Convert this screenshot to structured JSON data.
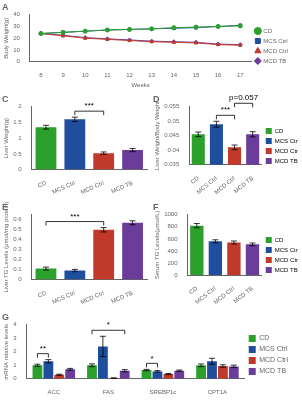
{
  "chart_data": [
    {
      "type": "line",
      "title": "A",
      "xlabel": "Weeks",
      "ylabel": "Body Weight(g)",
      "x": [
        8,
        9,
        10,
        11,
        12,
        13,
        14,
        15,
        16,
        17
      ],
      "series": [
        {
          "name": "CD",
          "color": "#2ca02c",
          "marker": "circle",
          "values": [
            24.0,
            25.0,
            26.0,
            27.0,
            27.5,
            28.0,
            29.0,
            29.5,
            30.0,
            30.5
          ]
        },
        {
          "name": "MCS Ctrl",
          "color": "#1f4e9f",
          "marker": "square",
          "values": [
            24.0,
            25.0,
            26.0,
            27.0,
            27.5,
            28.0,
            28.5,
            29.0,
            30.0,
            31.0
          ]
        },
        {
          "name": "MCD Ctrl",
          "color": "#c0392b",
          "marker": "triangle",
          "values": [
            24.0,
            22.0,
            20.0,
            19.0,
            18.0,
            17.0,
            16.5,
            16.0,
            14.5,
            14.0
          ]
        },
        {
          "name": "MCD TB",
          "color": "#6a3d9a",
          "marker": "diamond",
          "values": [
            24.0,
            22.5,
            20.5,
            19.5,
            18.5,
            17.5,
            17.0,
            16.5,
            15.0,
            14.5
          ]
        }
      ],
      "xlim": [
        7.5,
        17.5
      ],
      "xticks": [
        8,
        9,
        10,
        11,
        12,
        13,
        14,
        15,
        16,
        17
      ],
      "ylim": [
        0,
        40
      ],
      "yticks": [
        0,
        10,
        20,
        30,
        40
      ],
      "grid": false,
      "legend": "right"
    },
    {
      "type": "bar",
      "title": "C",
      "ylabel": "Liver Weight(g)",
      "categories": [
        "CD",
        "MCS Ctrl",
        "MCD Ctrl",
        "MCD TB"
      ],
      "values": [
        1.35,
        1.6,
        0.52,
        0.62
      ],
      "errors": [
        0.06,
        0.07,
        0.04,
        0.05
      ],
      "colors": [
        "#2ca02c",
        "#1f4e9f",
        "#c0392b",
        "#6a3d9a"
      ],
      "ylim": [
        0,
        2
      ],
      "yticks": [
        0,
        0.5,
        1,
        1.5,
        2
      ],
      "grid": false,
      "annotations": [
        {
          "from": "MCS Ctrl",
          "to": "MCD Ctrl",
          "text": "***"
        }
      ]
    },
    {
      "type": "bar",
      "title": "D",
      "ylabel": "Liver Weight/Body Weight",
      "categories": [
        "CD",
        "MCS Ctrl",
        "MCD Ctrl",
        "MCD TB"
      ],
      "values": [
        0.0455,
        0.049,
        0.041,
        0.0455
      ],
      "errors": [
        0.0008,
        0.001,
        0.0008,
        0.0009
      ],
      "colors": [
        "#2ca02c",
        "#1f4e9f",
        "#c0392b",
        "#6a3d9a"
      ],
      "ylim": [
        0.035,
        0.055
      ],
      "yticks": [
        0.035,
        0.04,
        0.045,
        0.05,
        0.055
      ],
      "grid": false,
      "legend": "right",
      "annotations": [
        {
          "from": "MCS Ctrl",
          "to": "MCD Ctrl",
          "text": "***"
        },
        {
          "from": "MCD Ctrl",
          "to": "MCD TB",
          "text": "p=0.057"
        }
      ]
    },
    {
      "type": "bar",
      "title": "E",
      "ylabel": "Liver TG Levels (μmol/mg protein)",
      "categories": [
        "CD",
        "MCS Ctrl",
        "MCD Ctrl",
        "MCD TB"
      ],
      "values": [
        0.11,
        0.09,
        0.5,
        0.57
      ],
      "errors": [
        0.015,
        0.012,
        0.022,
        0.02
      ],
      "colors": [
        "#2ca02c",
        "#1f4e9f",
        "#c0392b",
        "#6a3d9a"
      ],
      "ylim": [
        0,
        0.65
      ],
      "yticks": [
        0,
        0.1,
        0.2,
        0.3,
        0.4,
        0.5,
        0.6
      ],
      "grid": false,
      "annotations": [
        {
          "from": "CD",
          "to": "MCD Ctrl",
          "text": "***"
        }
      ]
    },
    {
      "type": "bar",
      "title": "F",
      "ylabel": "Serum TG Levels(μmol/L)",
      "categories": [
        "CD",
        "MCS Ctrl",
        "MCD Ctrl",
        "MCD TB"
      ],
      "values": [
        820,
        560,
        540,
        510
      ],
      "errors": [
        35,
        25,
        25,
        22
      ],
      "colors": [
        "#2ca02c",
        "#1f4e9f",
        "#c0392b",
        "#6a3d9a"
      ],
      "ylim": [
        0,
        1000
      ],
      "yticks": [
        0,
        200,
        400,
        600,
        800,
        1000
      ],
      "grid": false,
      "legend": "right"
    },
    {
      "type": "bar",
      "title": "G",
      "ylabel": "mRNA relative levels",
      "categories": [
        "ACC",
        "FAS",
        "SREBP1c",
        "CPT1A"
      ],
      "series": [
        {
          "name": "CD",
          "color": "#2ca02c",
          "values": [
            1.0,
            1.0,
            0.65,
            1.0
          ],
          "errors": [
            0.08,
            0.1,
            0.05,
            0.1
          ]
        },
        {
          "name": "MCS Ctrl",
          "color": "#1f4e9f",
          "values": [
            1.3,
            2.4,
            0.55,
            1.3
          ],
          "errors": [
            0.12,
            0.75,
            0.06,
            0.22
          ]
        },
        {
          "name": "MCD Ctrl",
          "color": "#c0392b",
          "values": [
            0.3,
            0.05,
            0.35,
            0.95
          ],
          "errors": [
            0.04,
            0.02,
            0.04,
            0.09
          ]
        },
        {
          "name": "MCD TB",
          "color": "#6a3d9a",
          "values": [
            0.7,
            0.6,
            0.6,
            0.92
          ],
          "errors": [
            0.07,
            0.08,
            0.05,
            0.09
          ]
        }
      ],
      "ylim": [
        0,
        4
      ],
      "yticks": [
        0,
        1,
        2,
        3,
        4
      ],
      "grid": false,
      "legend": "right",
      "annotations": [
        {
          "category": "ACC",
          "from": "CD",
          "to": "MCS Ctrl",
          "text": "**"
        },
        {
          "category": "FAS",
          "from": "CD",
          "to": "MCD TB",
          "text": "*"
        },
        {
          "category": "SREBP1c",
          "from": "CD",
          "to": "MCS Ctrl",
          "text": "*"
        }
      ]
    }
  ]
}
